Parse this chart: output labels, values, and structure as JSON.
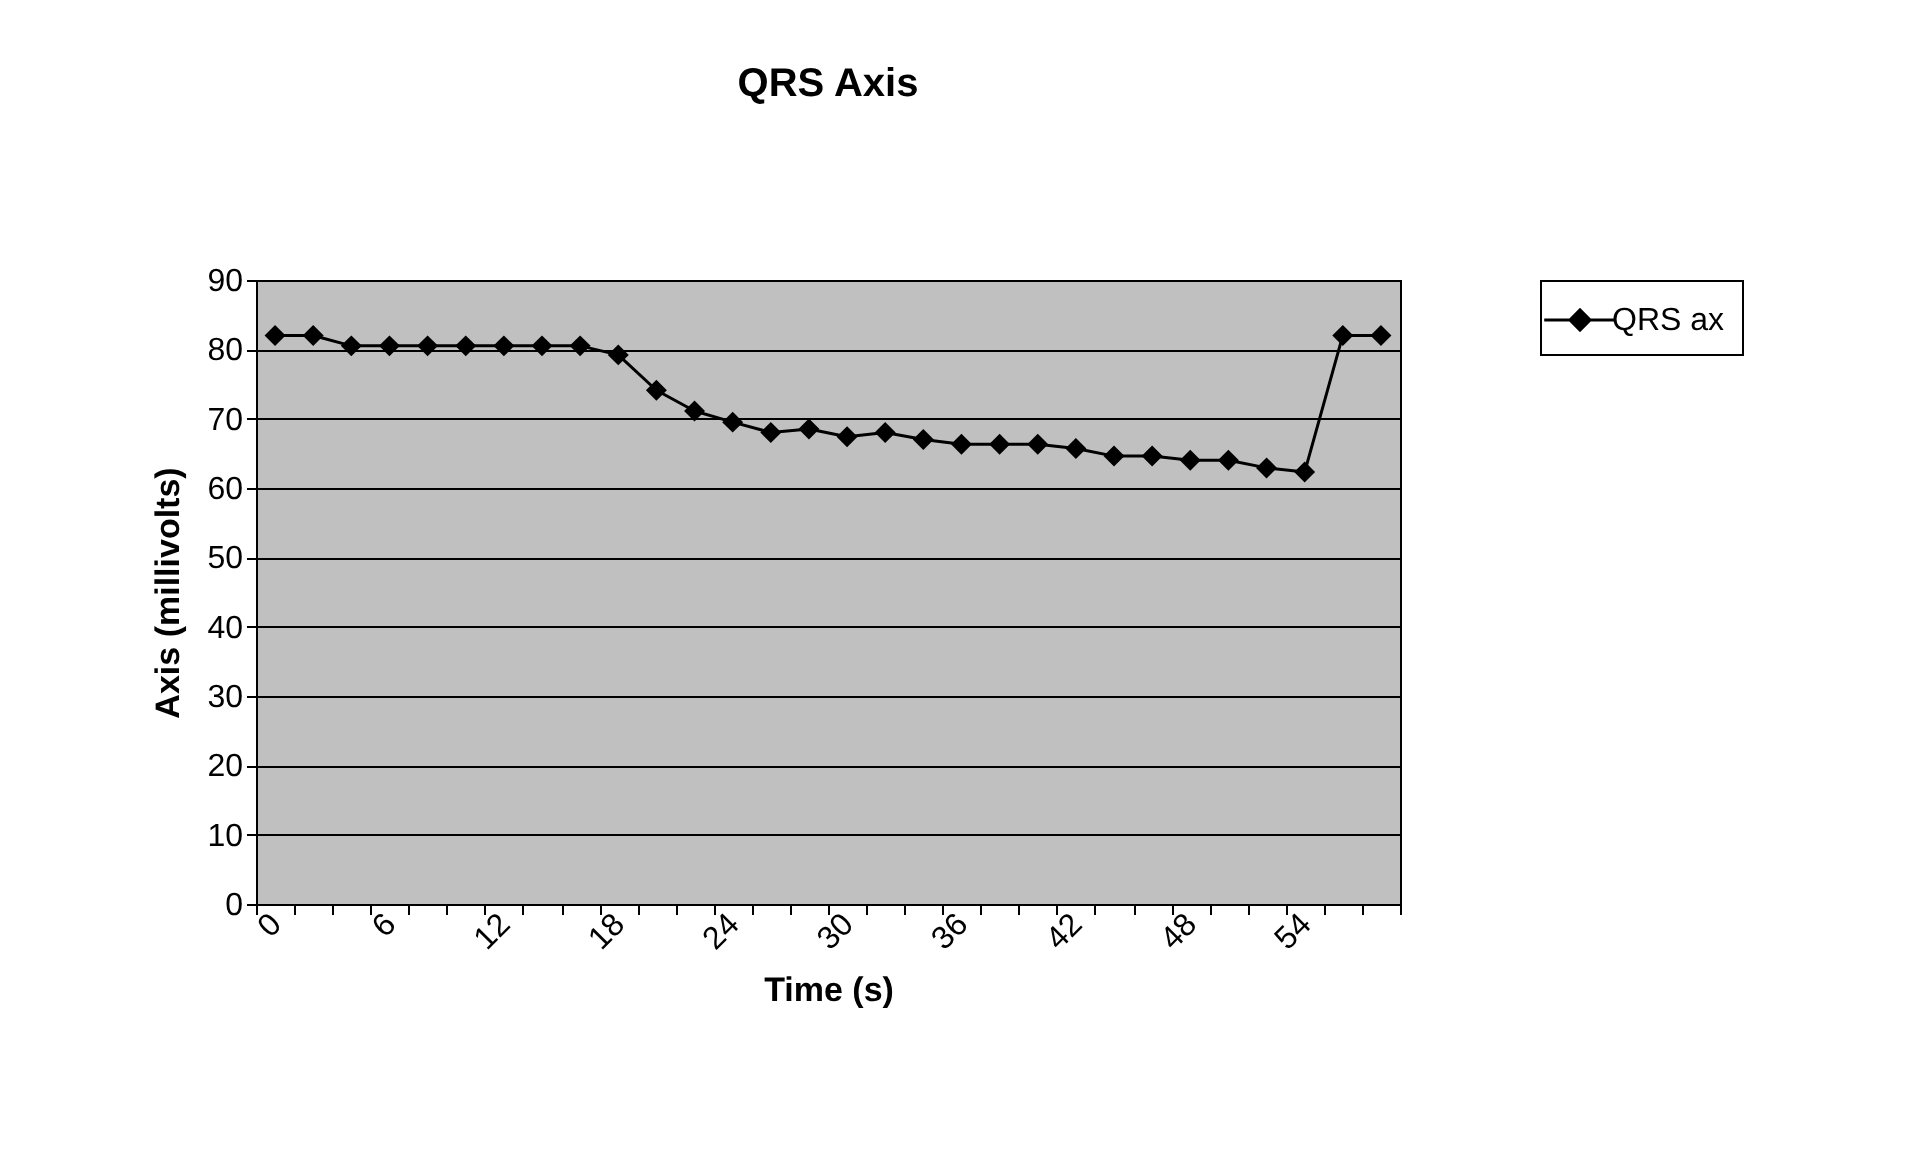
{
  "chart_data": {
    "type": "line",
    "title": "QRS Axis",
    "xlabel": "Time (s)",
    "ylabel": "Axis (millivolts)",
    "categories": [
      "0",
      null,
      null,
      "6",
      null,
      null,
      "12",
      null,
      null,
      "18",
      null,
      null,
      "24",
      null,
      null,
      "30",
      null,
      null,
      "36",
      null,
      null,
      "42",
      null,
      null,
      "48",
      null,
      null,
      "54",
      null,
      null
    ],
    "series": [
      {
        "name": "QRS ax",
        "color": "#000000",
        "values": [
          82,
          82,
          80.5,
          80.5,
          80.5,
          80.5,
          80.5,
          80.5,
          80.5,
          79.2,
          74.1,
          71.1,
          69.5,
          68,
          68.5,
          67.4,
          68,
          67,
          66.3,
          66.3,
          66.3,
          65.7,
          64.6,
          64.6,
          64,
          64,
          62.9,
          62.3,
          82,
          82
        ]
      }
    ],
    "ylim": [
      0,
      90
    ],
    "yticks": [
      0,
      10,
      20,
      30,
      40,
      50,
      60,
      70,
      80,
      90
    ],
    "grid": "y",
    "legend": "right",
    "marker": "diamond",
    "line_style": "solid"
  }
}
